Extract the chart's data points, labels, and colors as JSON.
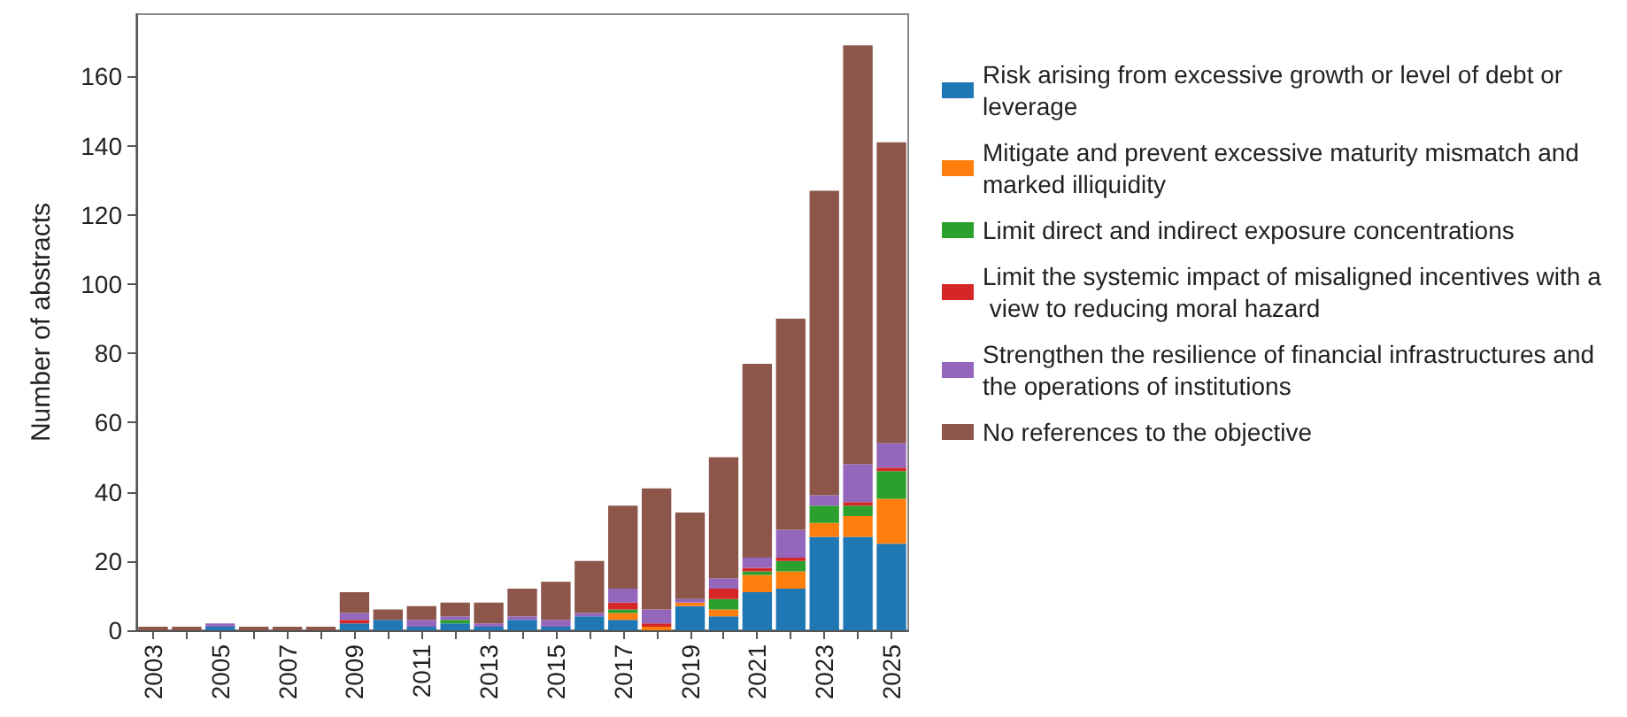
{
  "chart_data": {
    "type": "bar",
    "stacked": true,
    "ylabel": "Number of abstracts",
    "categories": [
      "2003",
      null,
      "2005",
      null,
      "2007",
      null,
      "2009",
      null,
      "2011",
      null,
      "2013",
      null,
      "2015",
      null,
      "2017",
      null,
      "2019",
      null,
      "2021",
      null,
      "2023",
      null,
      "2025"
    ],
    "ylim": [
      0,
      178
    ],
    "yticks": [
      0,
      20,
      40,
      60,
      80,
      100,
      120,
      140,
      160
    ],
    "grid": false,
    "legend": "right",
    "series": [
      {
        "name": "Risk arising from excessive growth or level of debt or leverage",
        "color": "#1f77b4",
        "values": [
          0,
          0,
          1,
          0,
          0,
          0,
          2,
          3,
          1,
          2,
          1,
          3,
          1,
          4,
          3,
          0,
          7,
          4,
          11,
          12,
          27,
          27,
          25
        ]
      },
      {
        "name": "Mitigate and prevent excessive maturity mismatch and marked illiquidity",
        "color": "#ff7f0e",
        "values": [
          0,
          0,
          0,
          0,
          0,
          0,
          0,
          0,
          0,
          0,
          0,
          0,
          0,
          0,
          2,
          1,
          1,
          2,
          5,
          5,
          4,
          6,
          13
        ]
      },
      {
        "name": "Limit direct and indirect exposure concentrations",
        "color": "#2ca02c",
        "values": [
          0,
          0,
          0,
          0,
          0,
          0,
          0,
          0,
          0,
          1,
          0,
          0,
          0,
          0,
          1,
          0,
          0,
          3,
          1,
          3,
          5,
          3,
          8
        ]
      },
      {
        "name": "Limit the systemic impact of misaligned incentives with a view to reducing moral hazard",
        "color": "#d62728",
        "values": [
          0,
          0,
          0,
          0,
          0,
          0,
          1,
          0,
          0,
          0,
          0,
          0,
          0,
          0,
          2,
          1,
          0,
          3,
          1,
          1,
          0,
          1,
          1
        ]
      },
      {
        "name": "Strengthen the resilience of financial infrastructures and the operations of institutions",
        "color": "#9467bd",
        "values": [
          0,
          0,
          1,
          0,
          0,
          0,
          2,
          0,
          2,
          1,
          1,
          1,
          2,
          1,
          4,
          4,
          1,
          3,
          3,
          8,
          3,
          11,
          7
        ]
      },
      {
        "name": "No references to the objective",
        "color": "#8c564b",
        "values": [
          1,
          1,
          0,
          1,
          1,
          1,
          6,
          3,
          4,
          4,
          6,
          8,
          11,
          15,
          24,
          35,
          25,
          35,
          56,
          61,
          88,
          121,
          87
        ]
      }
    ]
  }
}
